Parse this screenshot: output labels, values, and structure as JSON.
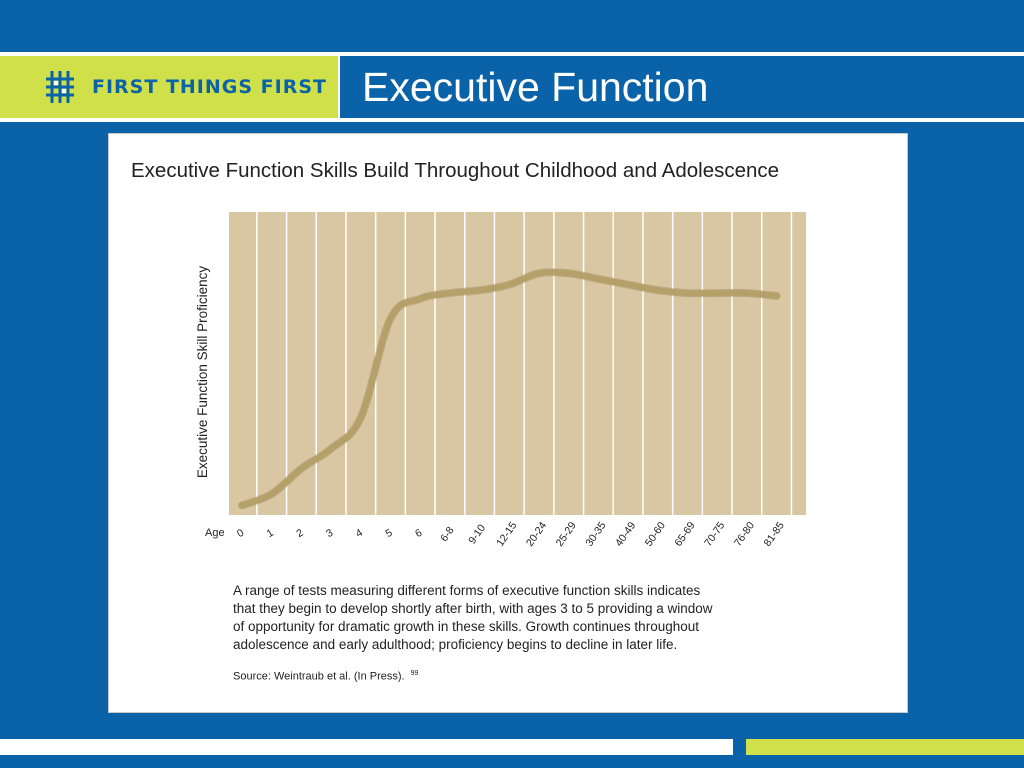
{
  "brand": {
    "name": "FIRST THINGS FIRST",
    "icon": "lattice-logo-icon",
    "colors": {
      "blue": "#0a63a8",
      "lime": "#cfe04a"
    }
  },
  "slide": {
    "title": "Executive Function"
  },
  "chart_data": {
    "type": "line",
    "title": "Executive Function Skills Build Throughout Childhood and Adolescence",
    "xlabel": "Age",
    "ylabel": "Executive Function Skill Proficiency",
    "categories": [
      "0",
      "1",
      "2",
      "3",
      "4",
      "5",
      "6",
      "6-8",
      "9-10",
      "12-15",
      "20-24",
      "25-29",
      "30-35",
      "40-49",
      "50-60",
      "65-69",
      "70-75",
      "76-80",
      "81-85"
    ],
    "series": [
      {
        "values": [
          2,
          6,
          15,
          22,
          33,
          68,
          75,
          77,
          78,
          80,
          84,
          84,
          82,
          80,
          78,
          77,
          77,
          77,
          76
        ]
      }
    ],
    "ylim": [
      0,
      100
    ],
    "grid": "vertical",
    "yticks": "none",
    "colors": {
      "plot_bg": "#d9c7a3",
      "grid": "#ffffff",
      "line": "#b6a06a"
    }
  },
  "caption": {
    "lines": [
      "A range of tests measuring different forms of executive function skills indicates",
      "that they begin to develop shortly after birth, with ages 3 to 5 providing a window",
      "of opportunity for dramatic growth in these skills. Growth continues throughout",
      "adolescence and early adulthood; proficiency begins to decline in later life."
    ]
  },
  "source": {
    "text": "Source: Weintraub et al. (In Press).",
    "ref": "99"
  }
}
